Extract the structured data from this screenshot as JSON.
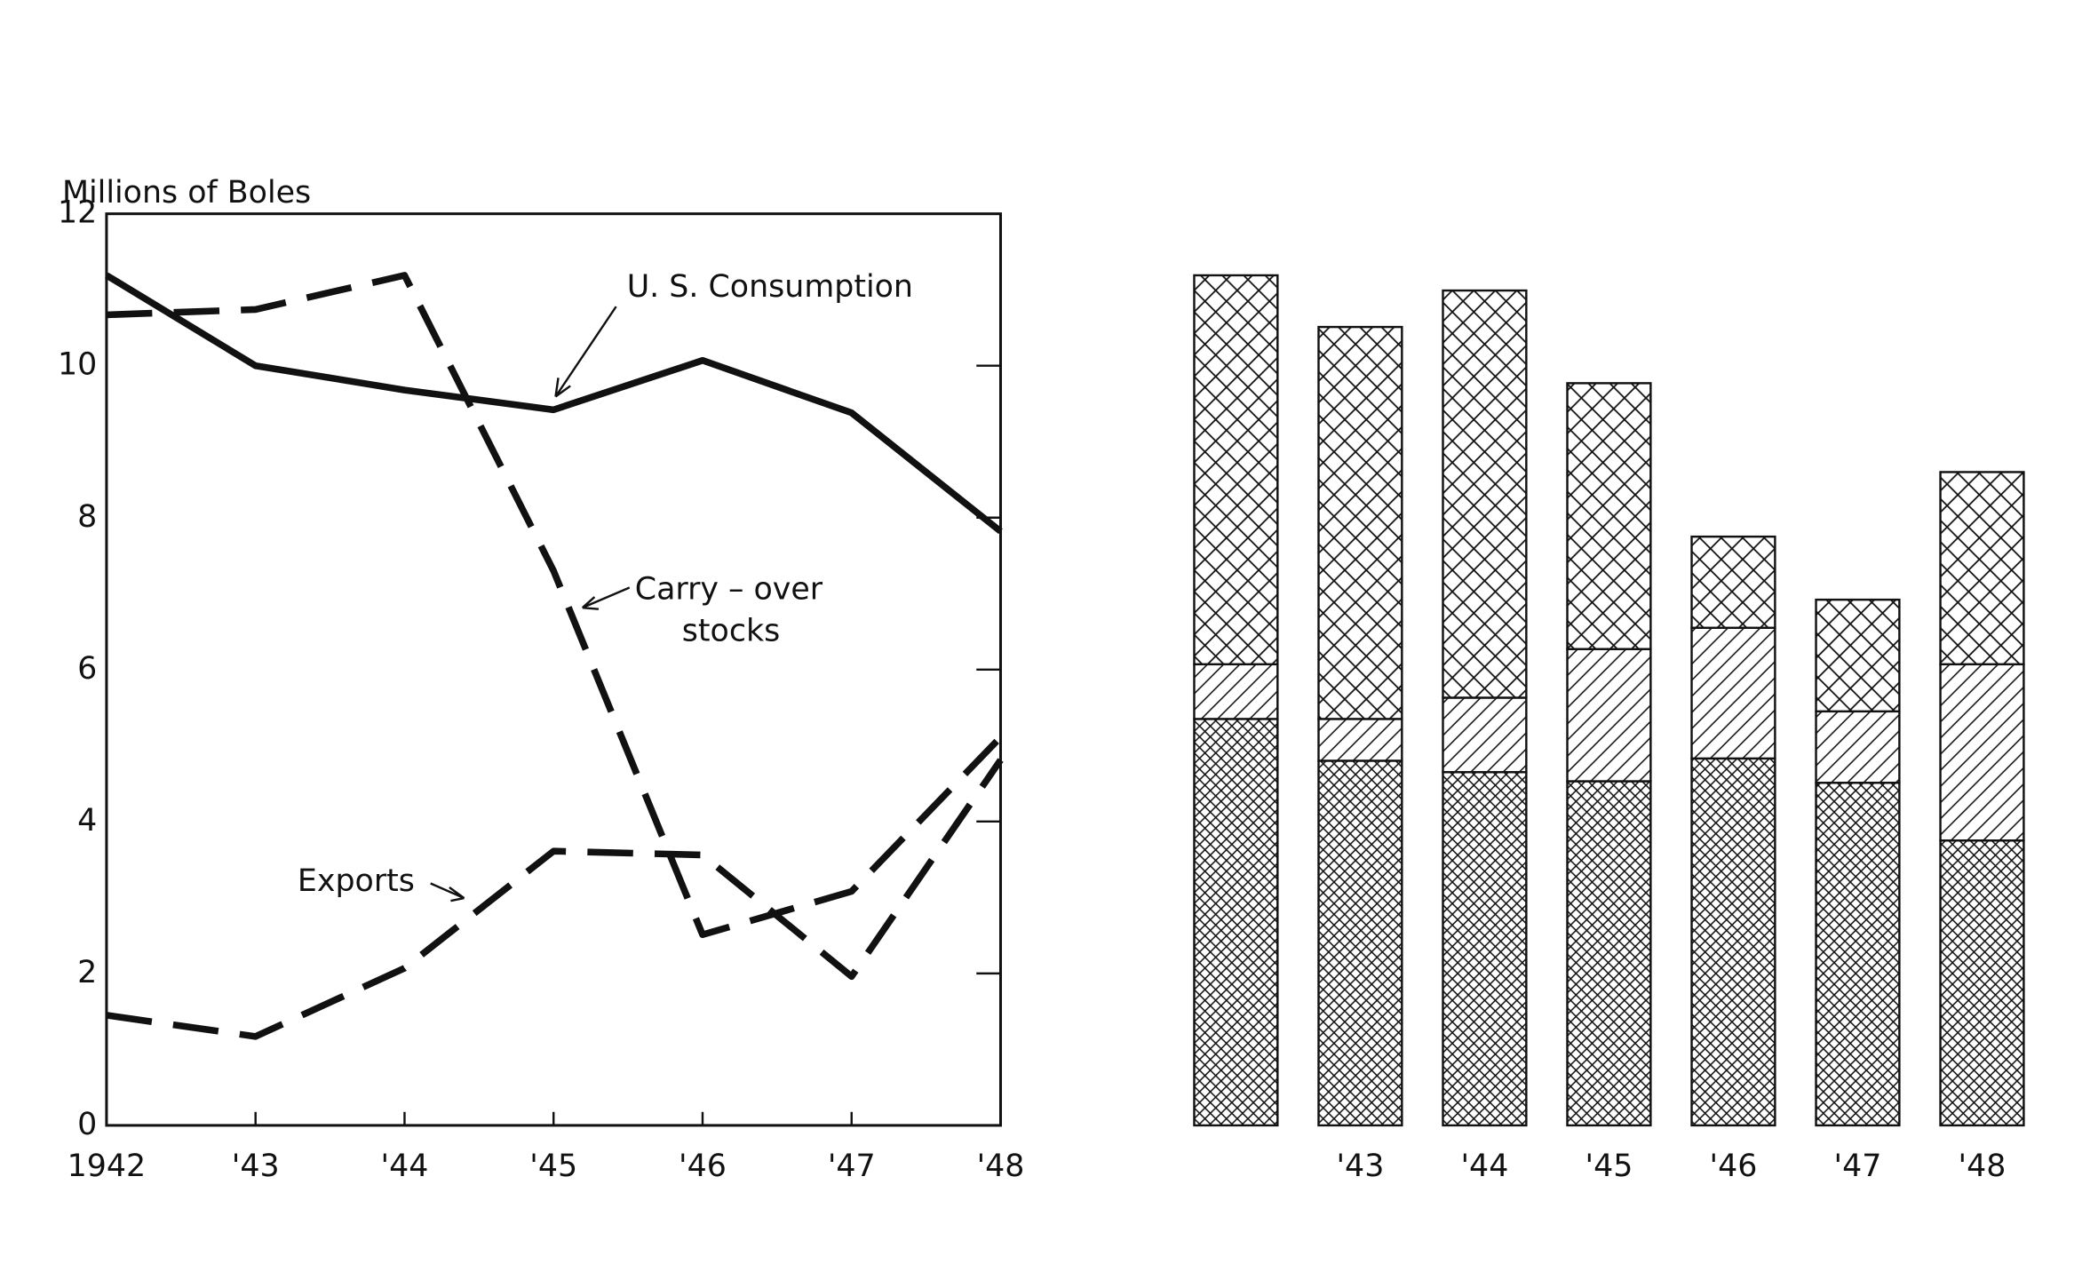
{
  "chart_data": [
    {
      "type": "line",
      "y_label": "Millions of Boles",
      "categories": [
        "1942",
        "'43",
        "'44",
        "'45",
        "'46",
        "'47",
        "'48"
      ],
      "series": [
        {
          "values": [
            11.19,
            10.0,
            9.68,
            9.42,
            10.07,
            9.38,
            7.82
          ],
          "color": "#111111",
          "dash": "solid"
        },
        {
          "values": [
            10.67,
            10.74,
            11.19,
            7.3,
            2.51,
            3.08,
            5.11
          ],
          "color": "#111111",
          "dash": "dashed"
        },
        {
          "values": [
            1.45,
            1.17,
            2.07,
            3.61,
            3.56,
            1.96,
            4.81
          ],
          "color": "#111111",
          "dash": "dashed"
        }
      ],
      "annotations": [
        "U. S. Consumption",
        "Carry – over",
        "stocks",
        "Exports"
      ],
      "ylim": [
        0,
        12
      ],
      "yticks": [
        0,
        2,
        4,
        6,
        8,
        10,
        12
      ]
    },
    {
      "type": "stacked_bar",
      "categories": [
        null,
        "'43",
        "'44",
        "'45",
        "'46",
        "'47",
        "'48"
      ],
      "series": [
        {
          "values": [
            5.35,
            4.8,
            4.65,
            4.53,
            4.83,
            4.51,
            3.75
          ],
          "pattern": "dense-crosshatch"
        },
        {
          "values": [
            0.72,
            0.55,
            0.98,
            1.74,
            1.72,
            0.94,
            2.32
          ],
          "pattern": "hatch"
        },
        {
          "values": [
            5.12,
            5.16,
            5.36,
            3.5,
            1.2,
            1.47,
            2.53
          ],
          "pattern": "crosshatch"
        }
      ],
      "ylim": [
        0,
        12
      ]
    }
  ]
}
